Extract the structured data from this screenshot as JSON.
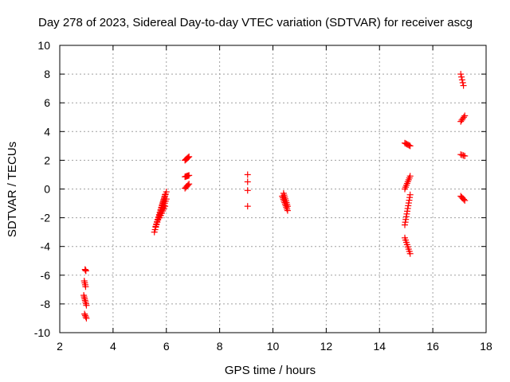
{
  "chart_data": {
    "type": "scatter",
    "title": "Day 278 of 2023, Sidereal Day-to-day VTEC variation (SDTVAR) for receiver ascg",
    "xlabel": "GPS time / hours",
    "ylabel": "SDTVAR / TECUs",
    "xlim": [
      2,
      18
    ],
    "ylim": [
      -10,
      10
    ],
    "x_ticks": [
      2,
      4,
      6,
      8,
      10,
      12,
      14,
      16,
      18
    ],
    "y_ticks": [
      -10,
      -8,
      -6,
      -4,
      -2,
      0,
      2,
      4,
      6,
      8,
      10
    ],
    "grid": true,
    "marker": "+",
    "colors": {
      "marker": "#ff0000",
      "grid": "#a0a0a0",
      "axis": "#000000"
    },
    "segments": [
      {
        "x0": 2.95,
        "y0": -5.6,
        "x1": 2.98,
        "y1": -5.7,
        "n": 3
      },
      {
        "x0": 2.92,
        "y0": -6.4,
        "x1": 2.97,
        "y1": -6.8,
        "n": 4
      },
      {
        "x0": 2.9,
        "y0": -7.4,
        "x1": 3.0,
        "y1": -8.1,
        "n": 7
      },
      {
        "x0": 2.93,
        "y0": -8.7,
        "x1": 3.0,
        "y1": -9.0,
        "n": 4
      },
      {
        "x0": 5.55,
        "y0": -3.0,
        "x1": 5.95,
        "y1": -0.4,
        "n": 16
      },
      {
        "x0": 5.6,
        "y0": -2.6,
        "x1": 6.0,
        "y1": -0.2,
        "n": 16
      },
      {
        "x0": 5.65,
        "y0": -2.3,
        "x1": 6.0,
        "y1": -0.7,
        "n": 12
      },
      {
        "x0": 5.75,
        "y0": -2.0,
        "x1": 5.95,
        "y1": -1.2,
        "n": 6
      },
      {
        "x0": 6.7,
        "y0": 2.0,
        "x1": 6.85,
        "y1": 2.25,
        "n": 6
      },
      {
        "x0": 6.7,
        "y0": 0.85,
        "x1": 6.85,
        "y1": 0.95,
        "n": 6
      },
      {
        "x0": 6.7,
        "y0": 0.05,
        "x1": 6.85,
        "y1": 0.35,
        "n": 5
      },
      {
        "x0": 9.05,
        "y0": 1.0,
        "x1": 9.05,
        "y1": 1.0,
        "n": 1
      },
      {
        "x0": 9.05,
        "y0": 0.5,
        "x1": 9.05,
        "y1": 0.5,
        "n": 1
      },
      {
        "x0": 9.05,
        "y0": -0.1,
        "x1": 9.05,
        "y1": -0.1,
        "n": 1
      },
      {
        "x0": 9.05,
        "y0": -1.2,
        "x1": 9.05,
        "y1": -1.2,
        "n": 1
      },
      {
        "x0": 10.35,
        "y0": -0.5,
        "x1": 10.55,
        "y1": -1.5,
        "n": 10
      },
      {
        "x0": 10.4,
        "y0": -0.3,
        "x1": 10.55,
        "y1": -1.2,
        "n": 8
      },
      {
        "x0": 14.95,
        "y0": 3.2,
        "x1": 15.15,
        "y1": 3.0,
        "n": 6
      },
      {
        "x0": 14.95,
        "y0": 0.0,
        "x1": 15.15,
        "y1": 0.9,
        "n": 8
      },
      {
        "x0": 14.95,
        "y0": -2.5,
        "x1": 15.15,
        "y1": -0.4,
        "n": 12
      },
      {
        "x0": 14.95,
        "y0": -3.4,
        "x1": 15.15,
        "y1": -4.5,
        "n": 8
      },
      {
        "x0": 17.05,
        "y0": 8.0,
        "x1": 17.15,
        "y1": 7.2,
        "n": 5
      },
      {
        "x0": 17.05,
        "y0": 4.7,
        "x1": 17.2,
        "y1": 5.1,
        "n": 5
      },
      {
        "x0": 17.05,
        "y0": 2.4,
        "x1": 17.2,
        "y1": 2.3,
        "n": 4
      },
      {
        "x0": 17.05,
        "y0": -0.5,
        "x1": 17.2,
        "y1": -0.8,
        "n": 5
      }
    ]
  }
}
